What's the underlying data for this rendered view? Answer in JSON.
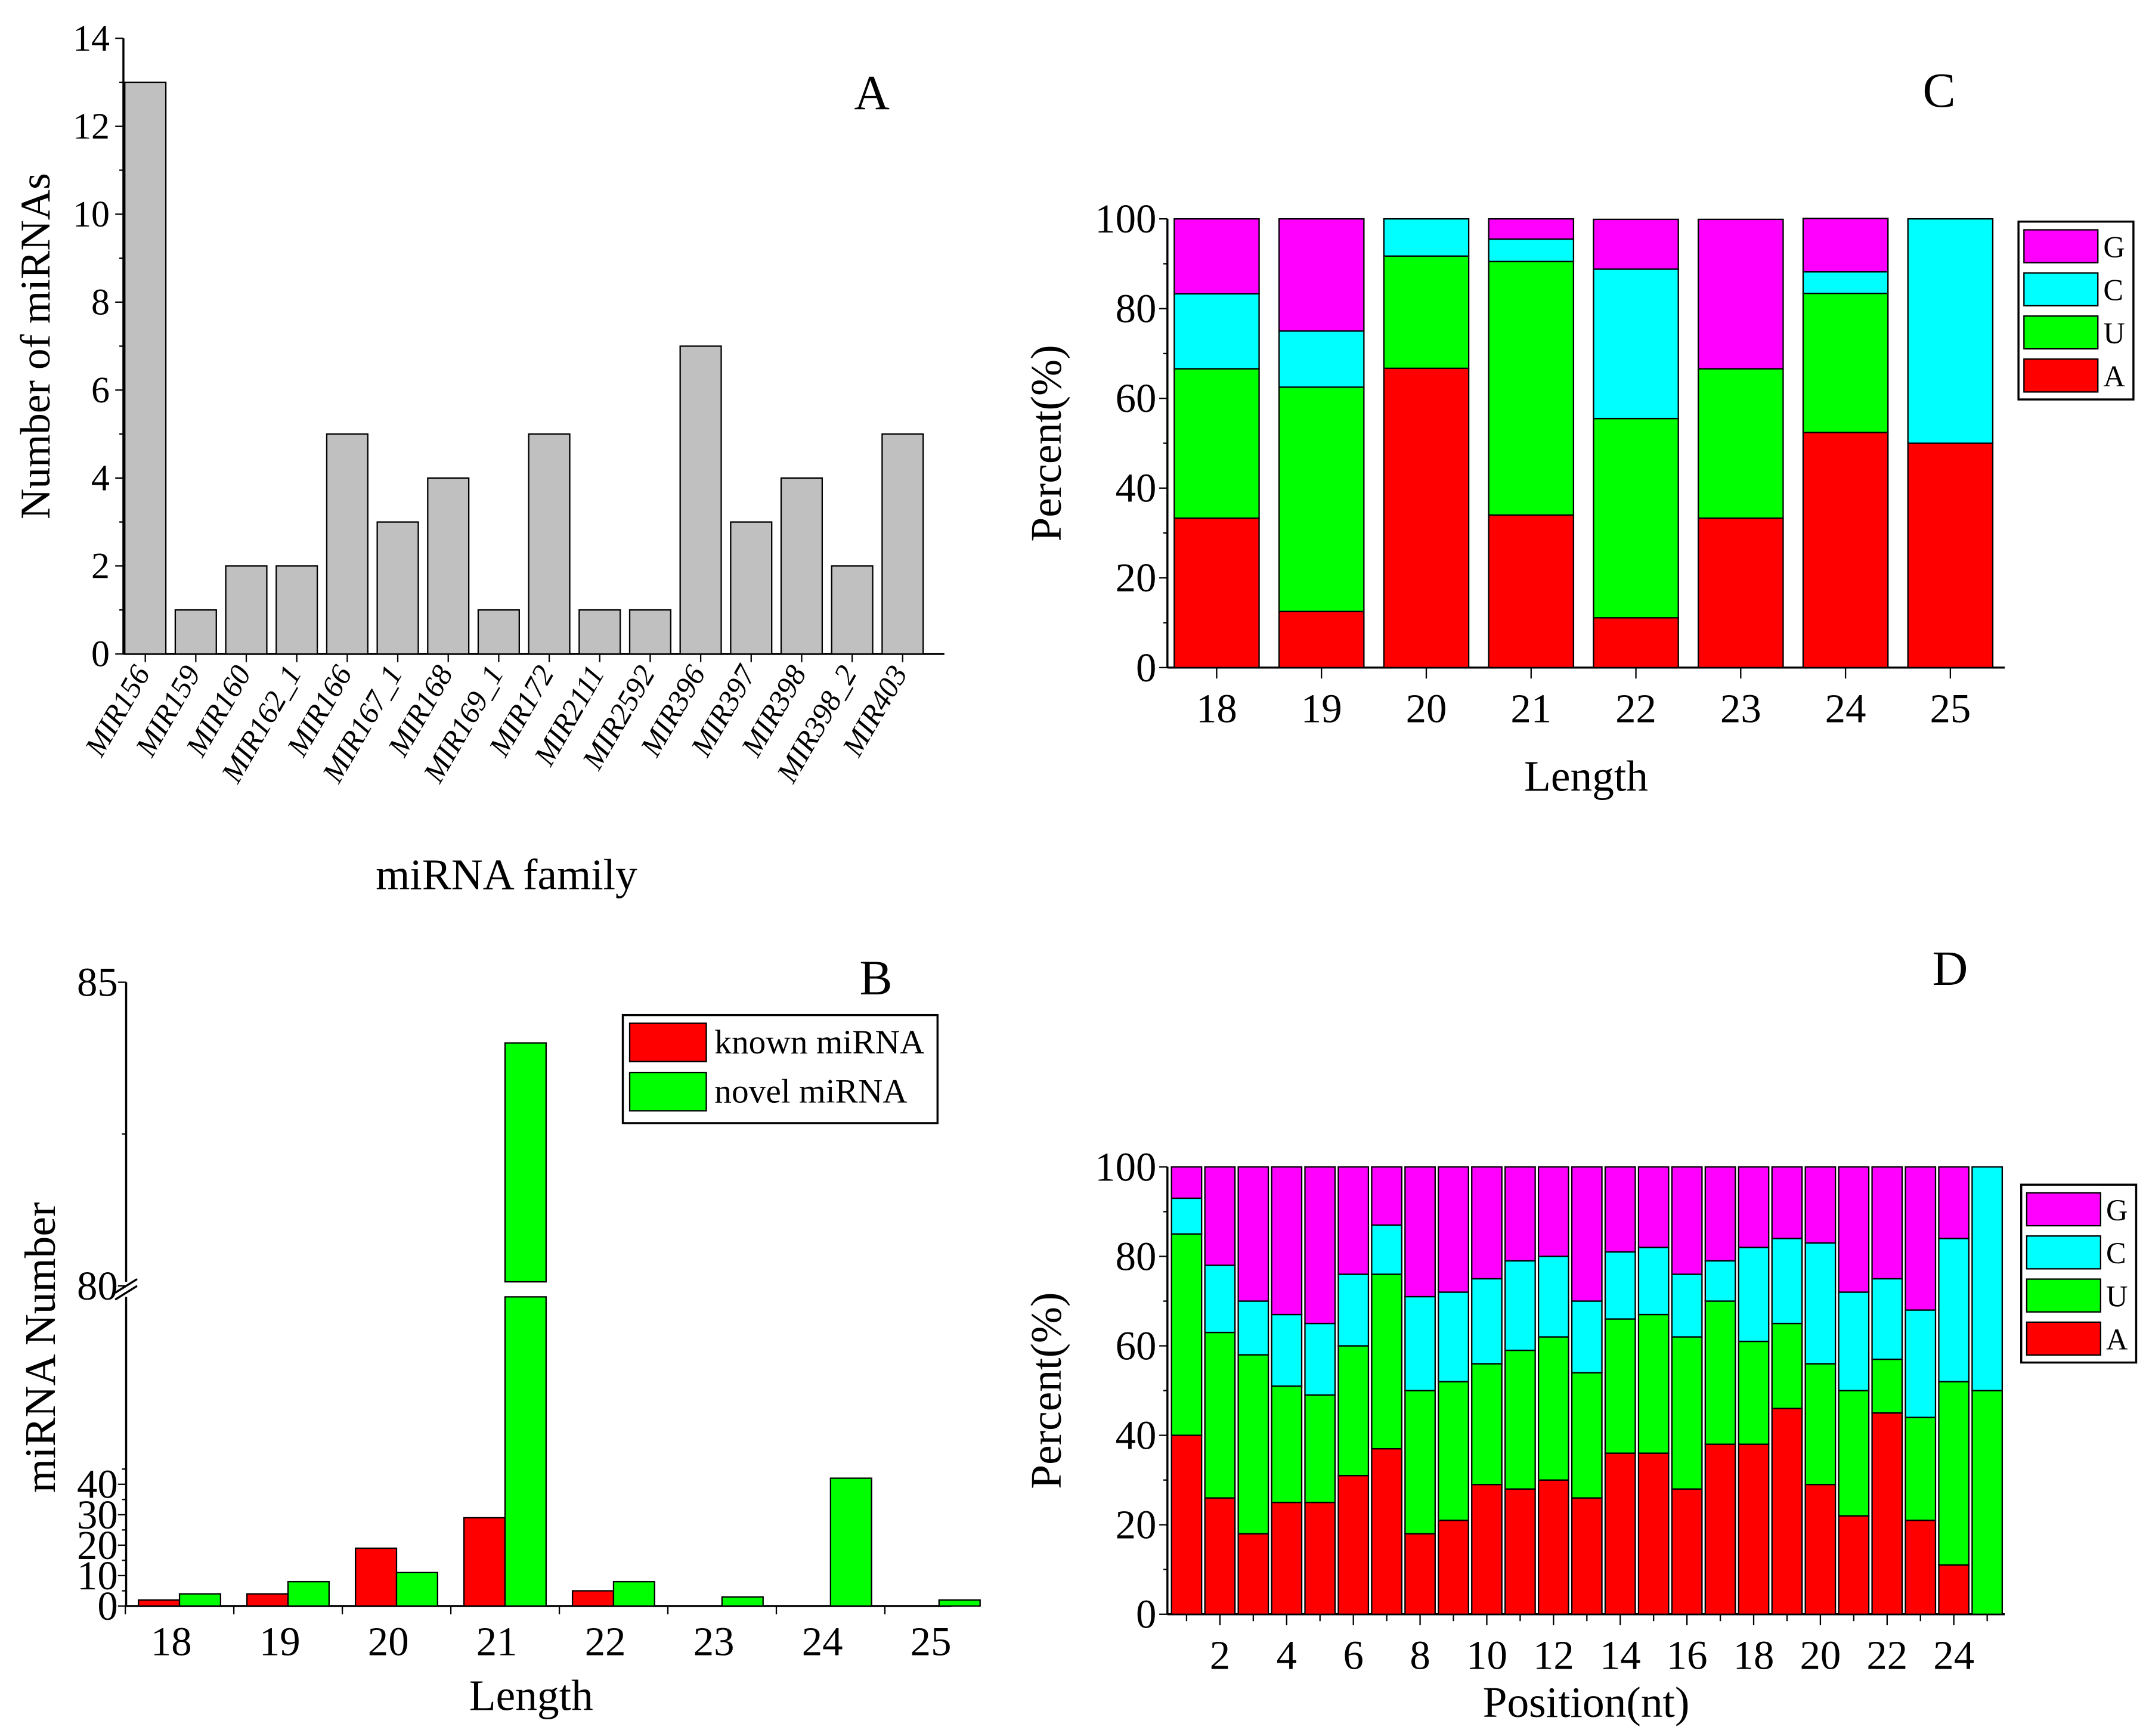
{
  "colors": {
    "A": "#ff0000",
    "U": "#00ff00",
    "C": "#00ffff",
    "G": "#ff00ff",
    "gray": "#c0c0c0",
    "known": "#ff0000",
    "novel": "#00ff00"
  },
  "chart_data": [
    {
      "panel": "A",
      "type": "bar",
      "title": "A",
      "xlabel": "miRNA family",
      "ylabel": "Number of miRNAs",
      "ylim": [
        0,
        14
      ],
      "yticks": [
        "0",
        "2",
        "4",
        "6",
        "8",
        "10",
        "12",
        "14"
      ],
      "categories": [
        "MIR156",
        "MIR159",
        "MIR160",
        "MIR162_1",
        "MIR166",
        "MIR167_1",
        "MIR168",
        "MIR169_1",
        "MIR172",
        "MIR2111",
        "MIR2592",
        "MIR396",
        "MIR397",
        "MIR398",
        "MIR398_2",
        "MIR403"
      ],
      "values": [
        13,
        1,
        2,
        2,
        5,
        3,
        4,
        1,
        5,
        1,
        1,
        7,
        3,
        4,
        2,
        5
      ]
    },
    {
      "panel": "B",
      "type": "bar",
      "title": "B",
      "xlabel": "Length",
      "ylabel": "miRNA Number",
      "ylim": [
        0,
        85
      ],
      "axis_break": [
        45,
        80
      ],
      "yticks": [
        "0",
        "10",
        "20",
        "30",
        "40",
        "80",
        "85"
      ],
      "categories": [
        "18",
        "19",
        "20",
        "21",
        "22",
        "23",
        "24",
        "25"
      ],
      "legend_position": "top-right",
      "series": [
        {
          "name": "known miRNA",
          "values": [
            2,
            4,
            19,
            29,
            5,
            0,
            0,
            0
          ]
        },
        {
          "name": "novel miRNA",
          "values": [
            4,
            8,
            11,
            84,
            8,
            3,
            42,
            2
          ]
        }
      ]
    },
    {
      "panel": "C",
      "type": "bar",
      "stacked": true,
      "title": "C",
      "xlabel": "Length",
      "ylabel": "Percent(%)",
      "ylim": [
        0,
        100
      ],
      "yticks": [
        "0",
        "20",
        "40",
        "60",
        "80",
        "100"
      ],
      "categories": [
        "18",
        "19",
        "20",
        "21",
        "22",
        "23",
        "24",
        "25"
      ],
      "legend": [
        "G",
        "C",
        "U",
        "A"
      ],
      "legend_position": "right",
      "series": [
        {
          "name": "A",
          "values": [
            33.3,
            12.5,
            66.7,
            34,
            11.1,
            33.3,
            52.4,
            50
          ]
        },
        {
          "name": "U",
          "values": [
            33.3,
            50,
            25,
            56.5,
            44.4,
            33.3,
            31,
            0
          ]
        },
        {
          "name": "C",
          "values": [
            16.7,
            12.5,
            8.3,
            5,
            33.3,
            0,
            4.8,
            50
          ]
        },
        {
          "name": "G",
          "values": [
            16.7,
            25,
            0,
            4.5,
            11.1,
            33.3,
            11.9,
            0
          ]
        }
      ]
    },
    {
      "panel": "D",
      "type": "bar",
      "stacked": true,
      "title": "D",
      "xlabel": "Position(nt)",
      "ylabel": "Percent(%)",
      "ylim": [
        0,
        100
      ],
      "yticks": [
        "0",
        "20",
        "40",
        "60",
        "80",
        "100"
      ],
      "xticks": [
        "2",
        "4",
        "6",
        "8",
        "10",
        "12",
        "14",
        "16",
        "18",
        "20",
        "22",
        "24"
      ],
      "categories": [
        1,
        2,
        3,
        4,
        5,
        6,
        7,
        8,
        9,
        10,
        11,
        12,
        13,
        14,
        15,
        16,
        17,
        18,
        19,
        20,
        21,
        22,
        23,
        24,
        25
      ],
      "legend": [
        "G",
        "C",
        "U",
        "A"
      ],
      "legend_position": "right",
      "series": [
        {
          "name": "A",
          "values": [
            40,
            26,
            18,
            25,
            25,
            31,
            37,
            18,
            21,
            29,
            28,
            30,
            26,
            36,
            36,
            28,
            38,
            38,
            46,
            29,
            22,
            45,
            21,
            11,
            0
          ]
        },
        {
          "name": "U",
          "values": [
            45,
            37,
            40,
            26,
            24,
            29,
            39,
            32,
            31,
            27,
            31,
            32,
            28,
            30,
            31,
            34,
            32,
            23,
            19,
            27,
            28,
            12,
            23,
            41,
            50
          ]
        },
        {
          "name": "C",
          "values": [
            8,
            15,
            12,
            16,
            16,
            16,
            11,
            21,
            20,
            19,
            20,
            18,
            16,
            15,
            15,
            14,
            9,
            21,
            19,
            27,
            22,
            18,
            24,
            32,
            50
          ]
        },
        {
          "name": "G",
          "values": [
            7,
            22,
            30,
            33,
            35,
            24,
            13,
            29,
            28,
            25,
            21,
            20,
            30,
            19,
            18,
            24,
            21,
            18,
            16,
            17,
            28,
            25,
            32,
            16,
            0
          ]
        }
      ]
    }
  ]
}
